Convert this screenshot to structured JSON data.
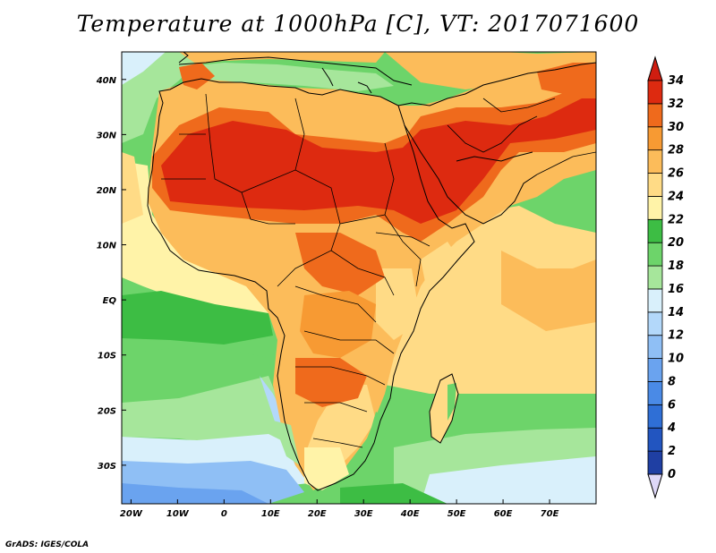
{
  "title": "Temperature at 1000hPa [C], VT: 2017071600",
  "credit": "GrADS: IGES/COLA",
  "map": {
    "lon_range": [
      -22,
      80
    ],
    "lat_range": [
      -37,
      45
    ],
    "lat_ticks": [
      {
        "value": 40,
        "label": "40N"
      },
      {
        "value": 30,
        "label": "30N"
      },
      {
        "value": 20,
        "label": "20N"
      },
      {
        "value": 10,
        "label": "10N"
      },
      {
        "value": 0,
        "label": "EQ"
      },
      {
        "value": -10,
        "label": "10S"
      },
      {
        "value": -20,
        "label": "20S"
      },
      {
        "value": -30,
        "label": "30S"
      }
    ],
    "lon_ticks": [
      {
        "value": -20,
        "label": "20W"
      },
      {
        "value": -10,
        "label": "10W"
      },
      {
        "value": 0,
        "label": "0"
      },
      {
        "value": 10,
        "label": "10E"
      },
      {
        "value": 20,
        "label": "20E"
      },
      {
        "value": 30,
        "label": "30E"
      },
      {
        "value": 40,
        "label": "40E"
      },
      {
        "value": 50,
        "label": "50E"
      },
      {
        "value": 60,
        "label": "60E"
      },
      {
        "value": 70,
        "label": "70E"
      }
    ]
  },
  "colorbar": {
    "levels": [
      {
        "label": "0",
        "color": "#1c1c8c"
      },
      {
        "label": "2",
        "color": "#1f3fa3"
      },
      {
        "label": "4",
        "color": "#2255c0"
      },
      {
        "label": "6",
        "color": "#2f6fd6"
      },
      {
        "label": "8",
        "color": "#4a8ae6"
      },
      {
        "label": "10",
        "color": "#6aa3ef"
      },
      {
        "label": "12",
        "color": "#8fbff5"
      },
      {
        "label": "14",
        "color": "#b3d8fa"
      },
      {
        "label": "16",
        "color": "#d9f0fb"
      },
      {
        "label": "18",
        "color": "#a6e69b"
      },
      {
        "label": "20",
        "color": "#6dd46a"
      },
      {
        "label": "22",
        "color": "#3dbd44"
      },
      {
        "label": "24",
        "color": "#fff3a8"
      },
      {
        "label": "26",
        "color": "#ffdb86"
      },
      {
        "label": "28",
        "color": "#fcbc5a"
      },
      {
        "label": "30",
        "color": "#f79a33"
      },
      {
        "label": "32",
        "color": "#ef6a1c"
      },
      {
        "label": "34",
        "color": "#dd2a10"
      }
    ],
    "under_color": "#ded8f8",
    "over_color": "#cf1d10"
  }
}
